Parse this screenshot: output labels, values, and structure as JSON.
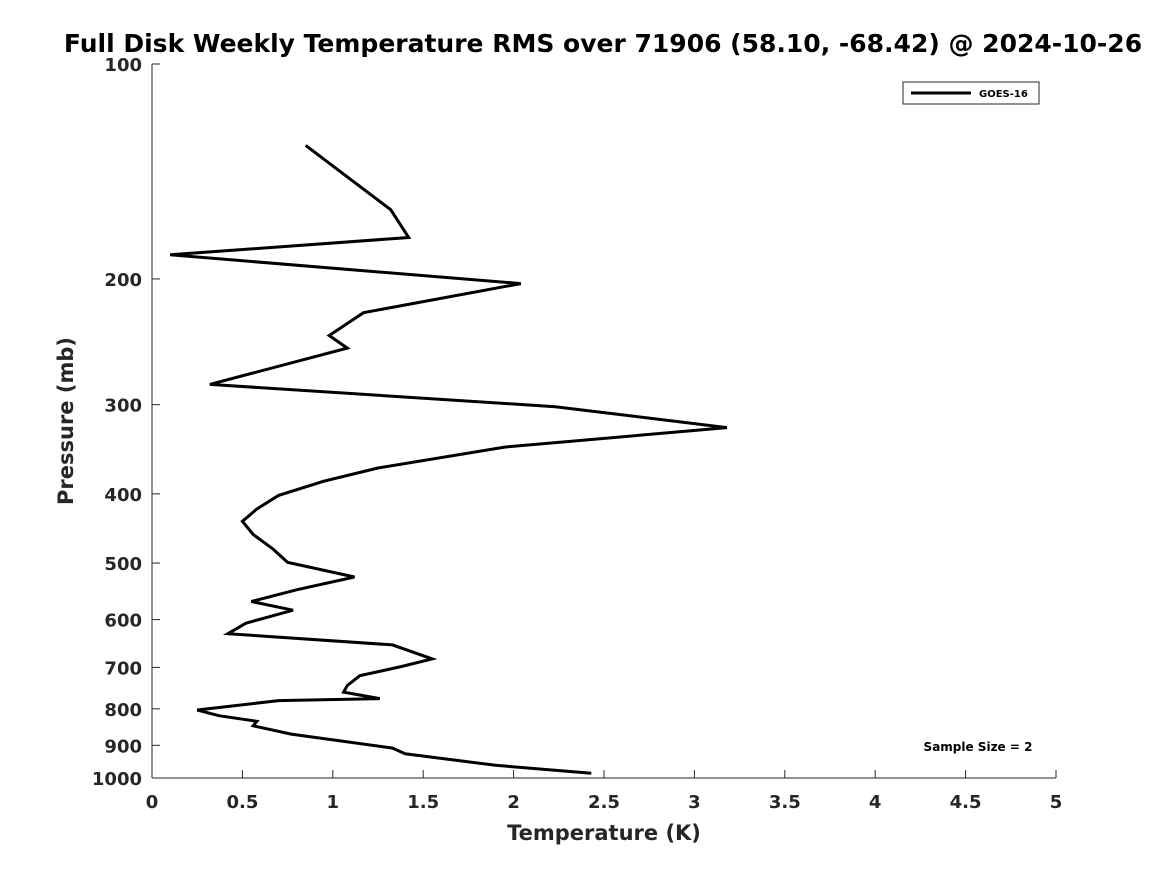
{
  "chart_data": {
    "type": "line",
    "title": "Full Disk Weekly Temperature RMS over 71906 (58.10, -68.42) @ 2024-10-26",
    "xlabel": "Temperature (K)",
    "ylabel": "Pressure (mb)",
    "xlim": [
      0,
      5
    ],
    "ylim": [
      100,
      1000
    ],
    "y_scale": "log",
    "y_reversed": true,
    "x_ticks": [
      0,
      0.5,
      1,
      1.5,
      2,
      2.5,
      3,
      3.5,
      4,
      4.5,
      5
    ],
    "x_tick_labels": [
      "0",
      "0.5",
      "1",
      "1.5",
      "2",
      "2.5",
      "3",
      "3.5",
      "4",
      "4.5",
      "5"
    ],
    "y_ticks": [
      100,
      200,
      300,
      400,
      500,
      600,
      700,
      800,
      900,
      1000
    ],
    "y_tick_labels": [
      "100",
      "200",
      "300",
      "400",
      "500",
      "600",
      "700",
      "800",
      "900",
      "1000"
    ],
    "grid": false,
    "legend_position": "top-right",
    "annotation": "Sample Size = 2",
    "series": [
      {
        "name": "GOES-16",
        "color": "#000000",
        "x": [
          0.85,
          1.32,
          1.42,
          0.1,
          2.04,
          1.17,
          0.98,
          1.08,
          0.32,
          2.23,
          3.18,
          1.95,
          1.25,
          0.95,
          0.7,
          0.58,
          0.5,
          0.56,
          0.67,
          0.75,
          1.12,
          0.8,
          0.55,
          0.78,
          0.52,
          0.42,
          1.33,
          1.55,
          1.38,
          1.15,
          1.08,
          1.06,
          1.26,
          0.7,
          0.25,
          0.37,
          0.58,
          0.56,
          0.77,
          1.33,
          1.4,
          1.9,
          2.43
        ],
        "y": [
          130,
          160,
          175,
          185,
          203,
          223,
          240,
          250,
          281,
          302,
          323,
          344,
          368,
          384,
          402,
          420,
          437,
          456,
          478,
          499,
          523,
          545,
          566,
          582,
          607,
          628,
          651,
          681,
          698,
          719,
          742,
          758,
          774,
          779,
          803,
          818,
          833,
          845,
          868,
          908,
          925,
          960,
          985
        ]
      }
    ]
  }
}
